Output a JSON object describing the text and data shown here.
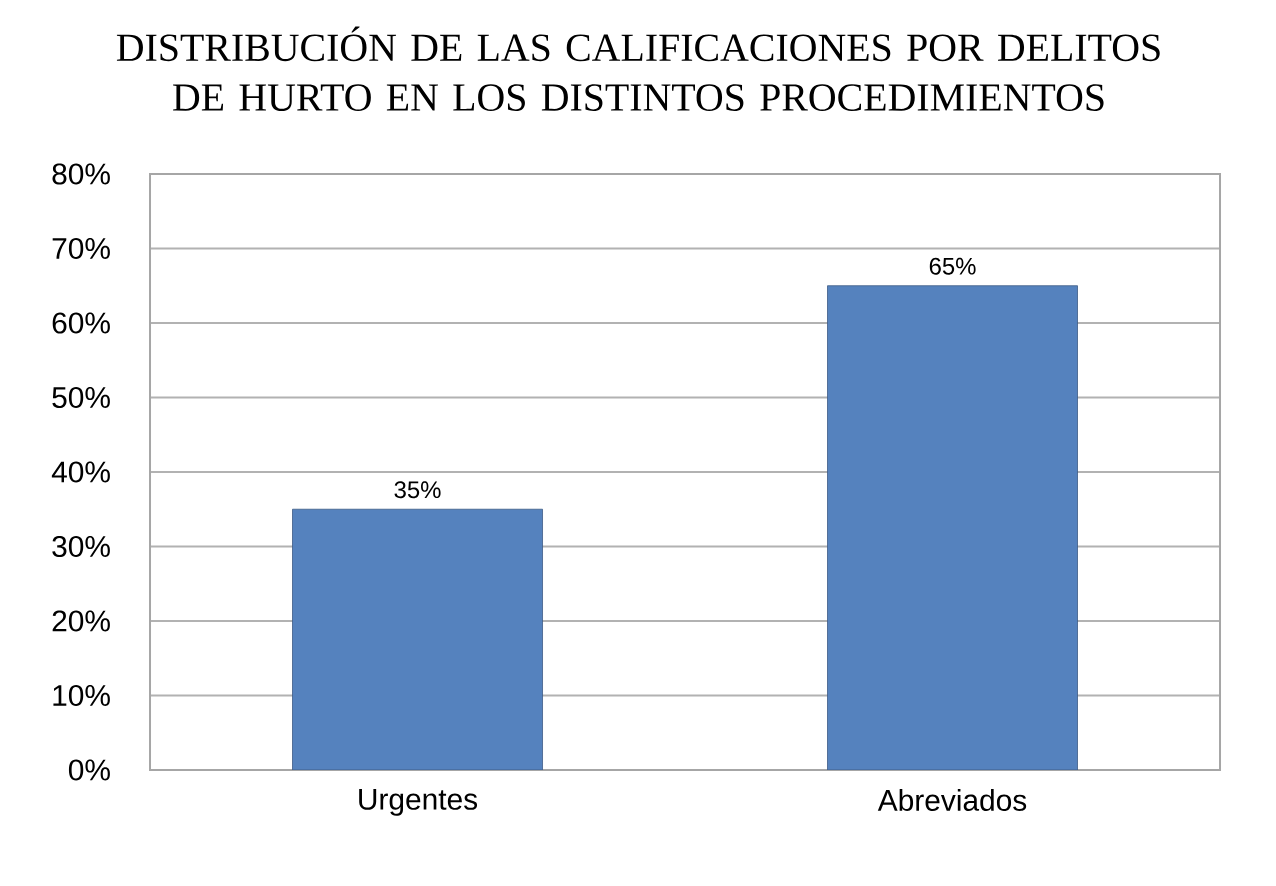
{
  "chart_data": {
    "type": "bar",
    "title": "DISTRIBUCIÓN DE LAS CALIFICACIONES POR DELITOS DE HURTO EN LOS DISTINTOS PROCEDIMIENTOS",
    "categories": [
      "Urgentes",
      "Abreviados"
    ],
    "values": [
      35,
      65
    ],
    "value_labels": [
      "35%",
      "65%"
    ],
    "color": "#5582be",
    "ylim": [
      0,
      80
    ],
    "yticks": [
      {
        "value": 0,
        "label": "0%"
      },
      {
        "value": 10,
        "label": "10%"
      },
      {
        "value": 20,
        "label": "20%"
      },
      {
        "value": 30,
        "label": "30%"
      },
      {
        "value": 40,
        "label": "40%"
      },
      {
        "value": 50,
        "label": "50%"
      },
      {
        "value": 60,
        "label": "60%"
      },
      {
        "value": 70,
        "label": "70%"
      },
      {
        "value": 80,
        "label": "80%"
      }
    ],
    "grid": "y"
  }
}
